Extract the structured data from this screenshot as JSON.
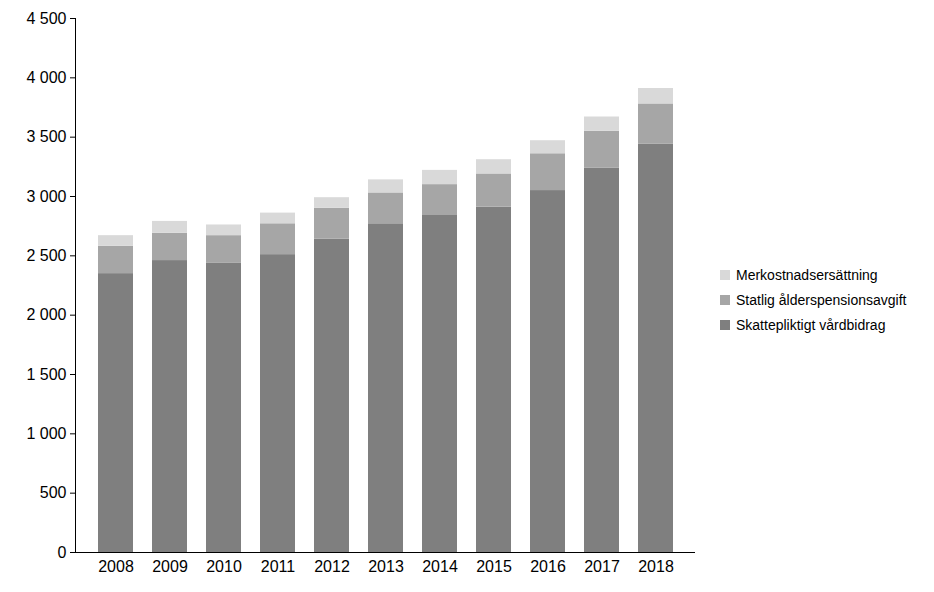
{
  "chart_data": {
    "type": "bar",
    "stacked": true,
    "grid": false,
    "legend": "right",
    "categories": [
      "2008",
      "2009",
      "2010",
      "2011",
      "2012",
      "2013",
      "2014",
      "2015",
      "2016",
      "2017",
      "2018"
    ],
    "ylim": [
      0,
      4500
    ],
    "yticks": [
      0,
      500,
      {
        "value": 1000,
        "label": "1 000"
      },
      {
        "value": 1500,
        "label": "1 500"
      },
      {
        "value": 2000,
        "label": "2 000"
      },
      {
        "value": 2500,
        "label": "2 500"
      },
      {
        "value": 3000,
        "label": "3 000"
      },
      {
        "value": 3500,
        "label": "3 500"
      },
      {
        "value": 4000,
        "label": "4 000"
      },
      {
        "value": 4500,
        "label": "4 500"
      }
    ],
    "series": [
      {
        "name": "Skattepliktigt vårdbidrag",
        "color": "#7f7f7f",
        "values": [
          2350,
          2460,
          2440,
          2510,
          2640,
          2770,
          2840,
          2910,
          3050,
          3240,
          3440
        ]
      },
      {
        "name": "Statlig ålderspensionsavgift",
        "color": "#a6a6a6",
        "values": [
          230,
          230,
          230,
          260,
          260,
          260,
          260,
          280,
          310,
          310,
          340
        ]
      },
      {
        "name": "Merkostnadsersättning",
        "color": "#d9d9d9",
        "values": [
          90,
          100,
          90,
          90,
          90,
          110,
          120,
          120,
          110,
          120,
          130
        ]
      }
    ]
  }
}
